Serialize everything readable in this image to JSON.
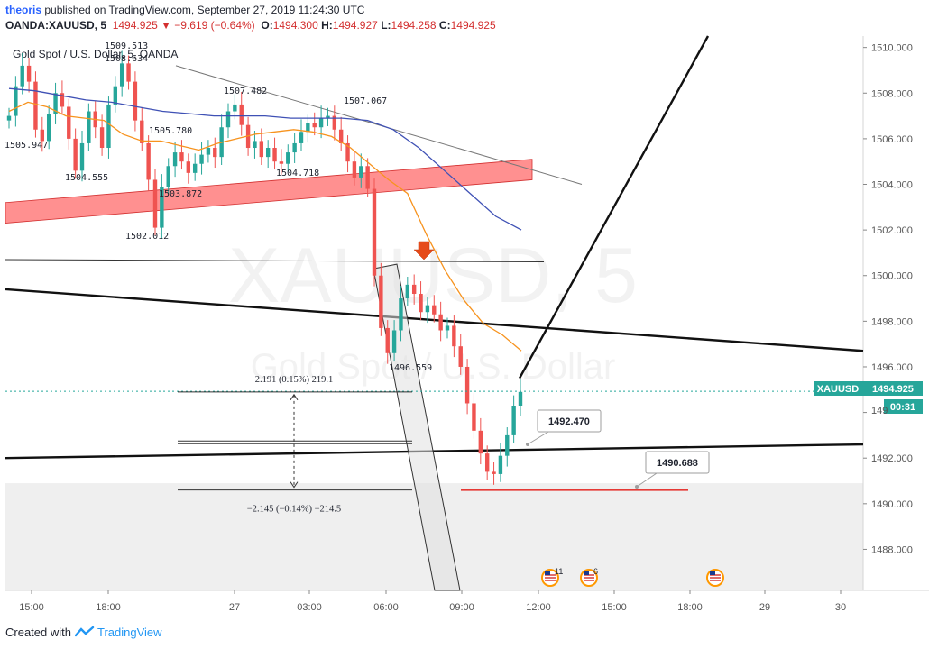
{
  "header": {
    "user": "theoris",
    "published_text": "published on TradingView.com, September 27, 2019 11:24:30 UTC",
    "symbol_line": "OANDA:XAUUSD, 5",
    "change": "1494.925 ▼ −9.619 (−0.64%)",
    "o_label": "O:",
    "o_value": "1494.300",
    "h_label": "H:",
    "h_value": "1494.927",
    "l_label": "L:",
    "l_value": "1494.258",
    "c_label": "C:",
    "c_value": "1494.925"
  },
  "footer": {
    "created_with": "Created with",
    "brand": "TradingView"
  },
  "colors": {
    "up": "#26a69a",
    "down": "#ef5350",
    "zone": "#ff6b6b",
    "ema_fast": "#f7931e",
    "ema_slow": "#3f51b5",
    "price_tag": "#26a69a"
  },
  "chart_data": {
    "type": "candlestick",
    "title": "Gold Spot / U.S. Dollar, 5, OANDA",
    "watermark_symbol": "XAUUSD, 5",
    "watermark_name": "Gold Spot / U.S. Dollar",
    "ylim": [
      1486.2,
      1510.5
    ],
    "y_ticks": [
      1488,
      1490,
      1492,
      1494,
      1496,
      1498,
      1500,
      1502,
      1504,
      1506,
      1508,
      1510
    ],
    "y_tick_labels": [
      "1488.000",
      "1490.000",
      "1492.000",
      "",
      "1496.000",
      "1498.000",
      "1500.000",
      "1502.000",
      "1504.000",
      "1506.000",
      "1508.000",
      "1510.000"
    ],
    "x_ticks": [
      "15:00",
      "18:00",
      "27",
      "03:00",
      "06:00",
      "09:00",
      "12:00",
      "15:00",
      "18:00",
      "29",
      "30"
    ],
    "last_price": 1494.925,
    "price_tag_label": "XAUUSD",
    "price_tag_value": "1494.925",
    "countdown": "00:31",
    "price_labels": [
      "1509.513",
      "1508.634",
      "1505.947",
      "1504.555",
      "1505.780",
      "1503.872",
      "1502.012",
      "1507.482",
      "1504.718",
      "1507.067",
      "1496.559"
    ],
    "callouts": [
      "1492.470",
      "1490.688"
    ],
    "measure_up": "2.191 (0.15%) 219.1",
    "measure_down": "−2.145 (−0.14%) −214.5",
    "calendar_events": [
      "11",
      "6",
      ""
    ],
    "close_path": [
      1507.0,
      1508.3,
      1509.2,
      1508.5,
      1506.4,
      1505.9,
      1507.1,
      1508.0,
      1507.4,
      1506.0,
      1504.6,
      1505.8,
      1507.2,
      1506.5,
      1505.6,
      1507.5,
      1508.3,
      1509.3,
      1508.5,
      1506.8,
      1505.8,
      1504.2,
      1502.1,
      1503.9,
      1504.8,
      1505.4,
      1505.0,
      1504.5,
      1504.9,
      1505.3,
      1505.6,
      1505.2,
      1506.5,
      1507.2,
      1507.5,
      1506.6,
      1505.6,
      1505.9,
      1505.2,
      1505.6,
      1505.0,
      1504.9,
      1505.4,
      1505.8,
      1506.3,
      1506.7,
      1506.5,
      1506.9,
      1507.0,
      1506.4,
      1505.8,
      1505.0,
      1504.3,
      1504.8,
      1503.8,
      1500.0,
      1497.7,
      1496.6,
      1497.6,
      1499.0,
      1499.6,
      1499.2,
      1498.4,
      1498.7,
      1498.3,
      1497.6,
      1497.8,
      1496.9,
      1496.0,
      1494.4,
      1493.2,
      1492.2,
      1491.4,
      1491.3,
      1492.1,
      1493.0,
      1494.3,
      1494.9
    ],
    "ema_fast_path": [
      1507.2,
      1507.6,
      1507.4,
      1507.0,
      1506.9,
      1506.8,
      1506.2,
      1505.9,
      1505.9,
      1505.7,
      1505.5,
      1505.8,
      1506.0,
      1506.2,
      1506.3,
      1506.4,
      1506.3,
      1506.1,
      1505.6,
      1504.9,
      1504.2,
      1503.6,
      1501.8,
      1500.2,
      1498.9,
      1497.9,
      1497.4,
      1496.7
    ],
    "ema_slow_path": [
      1508.2,
      1508.1,
      1507.9,
      1507.7,
      1507.6,
      1507.4,
      1507.2,
      1507.1,
      1507.0,
      1507.0,
      1507.0,
      1506.9,
      1506.9,
      1506.9,
      1506.8,
      1506.4,
      1505.6,
      1504.6,
      1503.6,
      1502.6,
      1502.0
    ],
    "red_zone": {
      "from": [
        "15:00-left",
        1502.3,
        1503.2
      ],
      "to": [
        "11:00",
        1504.2,
        1505.1
      ]
    },
    "support_level": 1490.6
  }
}
